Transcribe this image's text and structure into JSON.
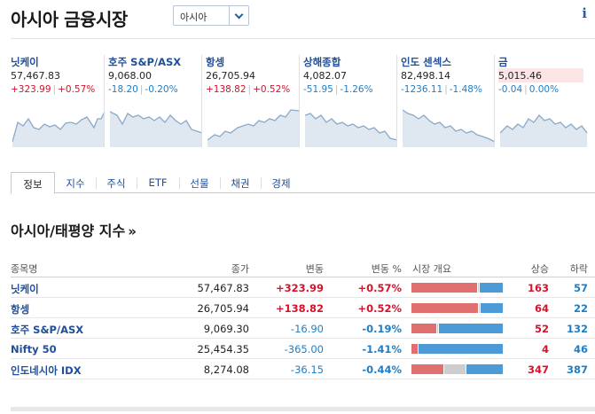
{
  "header": {
    "title": "아시아 금융시장",
    "region_select": "아시아",
    "info_icon": "i"
  },
  "markets": [
    {
      "name": "닛케이",
      "value": "57,467.83",
      "change": "+323.99",
      "pct": "+0.57%",
      "dir": "up"
    },
    {
      "name": "호주 S&P/ASX",
      "value": "9,068.00",
      "change": "-18.20",
      "pct": "-0.20%",
      "dir": "down"
    },
    {
      "name": "항셍",
      "value": "26,705.94",
      "change": "+138.82",
      "pct": "+0.52%",
      "dir": "up"
    },
    {
      "name": "상해종합",
      "value": "4,082.07",
      "change": "-51.95",
      "pct": "-1.26%",
      "dir": "down"
    },
    {
      "name": "인도 센섹스",
      "value": "82,498.14",
      "change": "-1236.11",
      "pct": "-1.48%",
      "dir": "down"
    },
    {
      "name": "금",
      "value": "5,015.46",
      "change": "-0.04",
      "pct": "0.00%",
      "dir": "down"
    }
  ],
  "tabs": [
    "정보",
    "지수",
    "주식",
    "ETF",
    "선물",
    "채권",
    "경제"
  ],
  "section": {
    "title": "아시아/태평양 지수",
    "more": "»"
  },
  "table": {
    "headers": {
      "name": "종목명",
      "close": "종가",
      "change": "변동",
      "pct": "변동 %",
      "overview": "시장 개요",
      "up": "상승",
      "down": "하락"
    },
    "rows": [
      {
        "name": "닛케이",
        "close": "57,467.83",
        "change": "+323.99",
        "pct": "+0.57%",
        "dir": "up",
        "adv": 163,
        "dec": 57,
        "unch": 5
      },
      {
        "name": "항셍",
        "close": "26,705.94",
        "change": "+138.82",
        "pct": "+0.52%",
        "dir": "up",
        "adv": 64,
        "dec": 22,
        "unch": 2
      },
      {
        "name": "호주 S&P/ASX",
        "close": "9,069.30",
        "change": "-16.90",
        "pct": "-0.19%",
        "dir": "down",
        "adv": 52,
        "dec": 132,
        "unch": 3
      },
      {
        "name": "Nifty 50",
        "close": "25,454.35",
        "change": "-365.00",
        "pct": "-1.41%",
        "dir": "down",
        "adv": 4,
        "dec": 46,
        "unch": 0
      },
      {
        "name": "인도네시아 IDX",
        "close": "8,274.08",
        "change": "-36.15",
        "pct": "-0.44%",
        "dir": "down",
        "adv": 347,
        "dec": 387,
        "unch": 230
      }
    ]
  },
  "colors": {
    "up": "#d7122b",
    "down": "#1e7ec8",
    "link": "#1f4e9a",
    "spark_line": "#8aa9c8",
    "spark_fill": "#dfe8f1"
  }
}
